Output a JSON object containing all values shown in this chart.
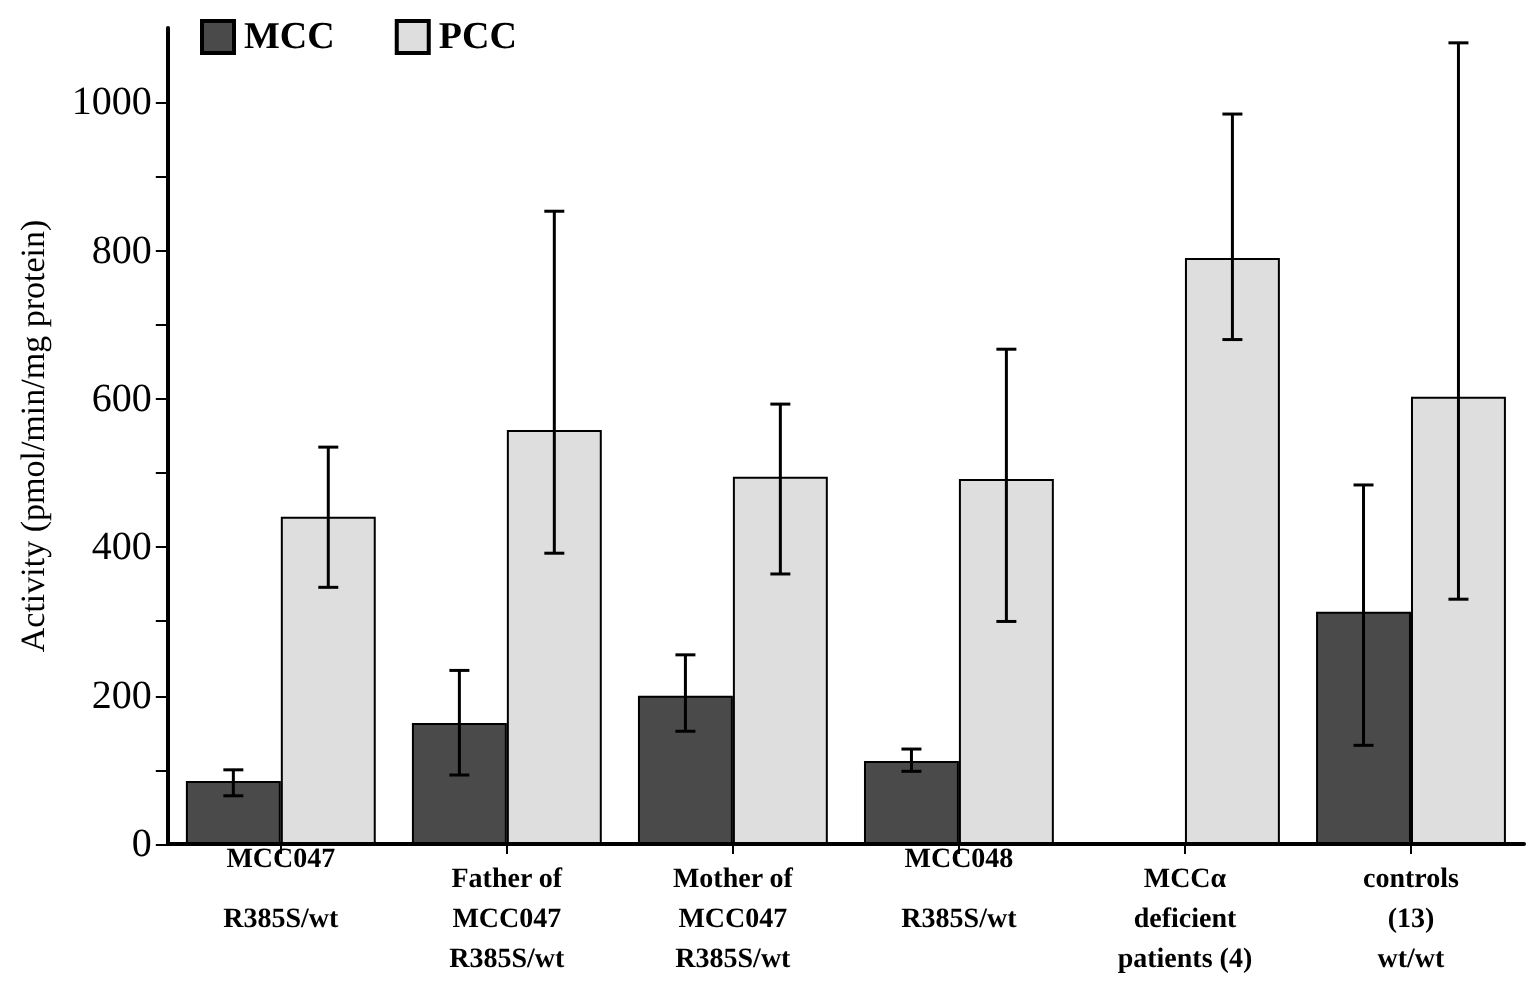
{
  "chart_data": {
    "type": "bar",
    "ylabel": "Activity (pmol/min/mg protein)",
    "categories": [
      "MCC047\nR385S/wt",
      "Father of\nMCC047\nR385S/wt",
      "Mother of\nMCC047\nR385S/wt",
      "MCC048\nR385S/wt",
      "MCCα\ndeficient\npatients (4)",
      "controls\n(13)\nwt/wt"
    ],
    "series": [
      {
        "name": "MCC",
        "color": "#4a4a4a",
        "values": [
          85,
          163,
          200,
          112,
          0,
          313
        ],
        "errors": [
          [
            65,
            100
          ],
          [
            93,
            234
          ],
          [
            152,
            255
          ],
          [
            98,
            128
          ],
          null,
          [
            133,
            484
          ]
        ]
      },
      {
        "name": "PCC",
        "color": "#dedede",
        "values": [
          441,
          558,
          495,
          492,
          790,
          603
        ],
        "errors": [
          [
            346,
            535
          ],
          [
            392,
            853
          ],
          [
            364,
            593
          ],
          [
            300,
            667
          ],
          [
            680,
            984
          ],
          [
            330,
            1080
          ]
        ]
      }
    ],
    "ylim": [
      0,
      1100
    ],
    "yticks": [
      0,
      {
        "value": 100,
        "label": null
      },
      200,
      {
        "value": 300,
        "label": null
      },
      400,
      {
        "value": 500,
        "label": null
      },
      600,
      {
        "value": 700,
        "label": null
      },
      800,
      {
        "value": 900,
        "label": null
      },
      1000
    ],
    "grid": false,
    "legend": "top left"
  }
}
